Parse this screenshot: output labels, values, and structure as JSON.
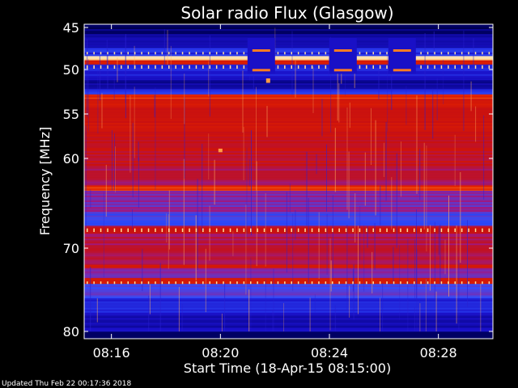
{
  "chart_data": {
    "type": "heatmap",
    "title": "Solar radio Flux (Glasgow)",
    "xlabel": "Start Time (18-Apr-15 08:15:00)",
    "ylabel": "Frequency [MHz]",
    "x_unit": "minutes",
    "xlim": [
      "08:15:00",
      "08:30:00"
    ],
    "ylim": [
      45,
      80
    ],
    "y_tick_values": [
      45,
      50,
      55,
      60,
      70,
      80
    ],
    "y_tick_labels": [
      "45",
      "50",
      "55",
      "60",
      "70",
      "80"
    ],
    "x_tick_values": [
      "08:16",
      "08:20",
      "08:24",
      "08:28"
    ],
    "x_tick_labels": [
      "08:16",
      "08:20",
      "08:24",
      "08:28"
    ],
    "colormap": [
      "#000000",
      "#00006e",
      "#1a10c8",
      "#3050ff",
      "#9a1a8a",
      "#c81010",
      "#e02000",
      "#ff7a20",
      "#ffd080",
      "#ffffff"
    ],
    "intensity_bands": [
      {
        "f_from": 45.0,
        "f_to": 45.8,
        "level": 0.12
      },
      {
        "f_from": 45.8,
        "f_to": 47.4,
        "level": 0.18
      },
      {
        "f_from": 47.4,
        "f_to": 48.4,
        "level": 0.28
      },
      {
        "f_from": 48.4,
        "f_to": 48.9,
        "level": 0.9
      },
      {
        "f_from": 48.9,
        "f_to": 49.4,
        "level": 0.62
      },
      {
        "f_from": 49.4,
        "f_to": 51.2,
        "level": 0.24
      },
      {
        "f_from": 51.2,
        "f_to": 52.2,
        "level": 0.16
      },
      {
        "f_from": 52.2,
        "f_to": 52.8,
        "level": 0.3
      },
      {
        "f_from": 52.8,
        "f_to": 53.3,
        "level": 0.68
      },
      {
        "f_from": 53.3,
        "f_to": 54.0,
        "level": 0.62
      },
      {
        "f_from": 54.0,
        "f_to": 57.0,
        "level": 0.58
      },
      {
        "f_from": 57.0,
        "f_to": 61.0,
        "level": 0.55
      },
      {
        "f_from": 61.0,
        "f_to": 63.0,
        "level": 0.5
      },
      {
        "f_from": 63.0,
        "f_to": 63.6,
        "level": 0.7
      },
      {
        "f_from": 63.6,
        "f_to": 66.0,
        "level": 0.42
      },
      {
        "f_from": 66.0,
        "f_to": 67.5,
        "level": 0.34
      },
      {
        "f_from": 67.5,
        "f_to": 68.4,
        "level": 0.55
      },
      {
        "f_from": 68.4,
        "f_to": 72.0,
        "level": 0.5
      },
      {
        "f_from": 72.0,
        "f_to": 72.4,
        "level": 0.62
      },
      {
        "f_from": 72.4,
        "f_to": 73.6,
        "level": 0.42
      },
      {
        "f_from": 73.6,
        "f_to": 74.3,
        "level": 0.6
      },
      {
        "f_from": 74.3,
        "f_to": 76.0,
        "level": 0.36
      },
      {
        "f_from": 76.0,
        "f_to": 78.0,
        "level": 0.26
      },
      {
        "f_from": 78.0,
        "f_to": 80.0,
        "level": 0.2
      }
    ],
    "bursts": [
      {
        "time": "08:21:30",
        "f_from": 47.4,
        "f_to": 50.3,
        "level": 0.78
      },
      {
        "time": "08:24:30",
        "f_from": 47.4,
        "f_to": 50.3,
        "level": 0.78
      },
      {
        "time": "08:26:40",
        "f_from": 47.4,
        "f_to": 50.3,
        "level": 0.78
      },
      {
        "time": "08:20:00",
        "f_from": 58.9,
        "f_to": 59.3,
        "level": 0.82
      },
      {
        "time": "08:21:45",
        "f_from": 51.0,
        "f_to": 51.5,
        "level": 0.82
      }
    ]
  },
  "footer": {
    "updated": "Updated Thu Feb 22 00:17:36 2018"
  }
}
